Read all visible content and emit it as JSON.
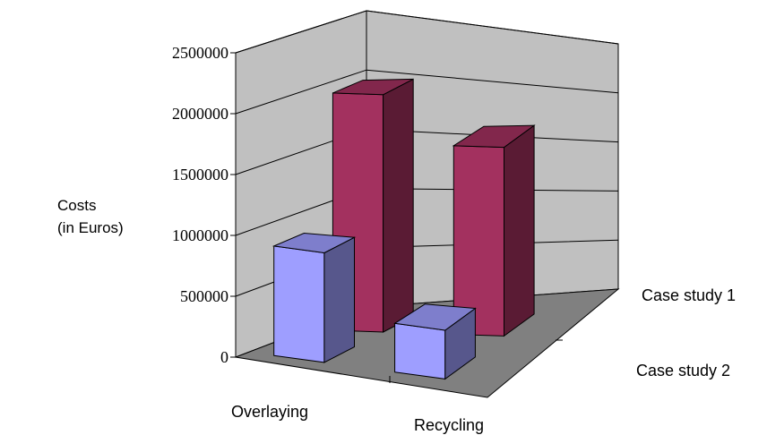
{
  "chart_data": {
    "type": "bar",
    "title": "",
    "ylabel_lines": [
      "Costs",
      "(in Euros)"
    ],
    "categories": [
      "Overlaying",
      "Recycling"
    ],
    "series": [
      {
        "name": "Case study 1",
        "values": [
          1950000,
          1550000
        ],
        "color": "#a3315f"
      },
      {
        "name": "Case study 2",
        "values": [
          900000,
          400000
        ],
        "color": "#9e9eff"
      }
    ],
    "y_ticks": [
      "0",
      "500000",
      "1000000",
      "1500000",
      "2000000",
      "2500000"
    ],
    "ylim": [
      0,
      2500000
    ],
    "grid": true,
    "legend": "right",
    "style": "3d-clustered"
  }
}
